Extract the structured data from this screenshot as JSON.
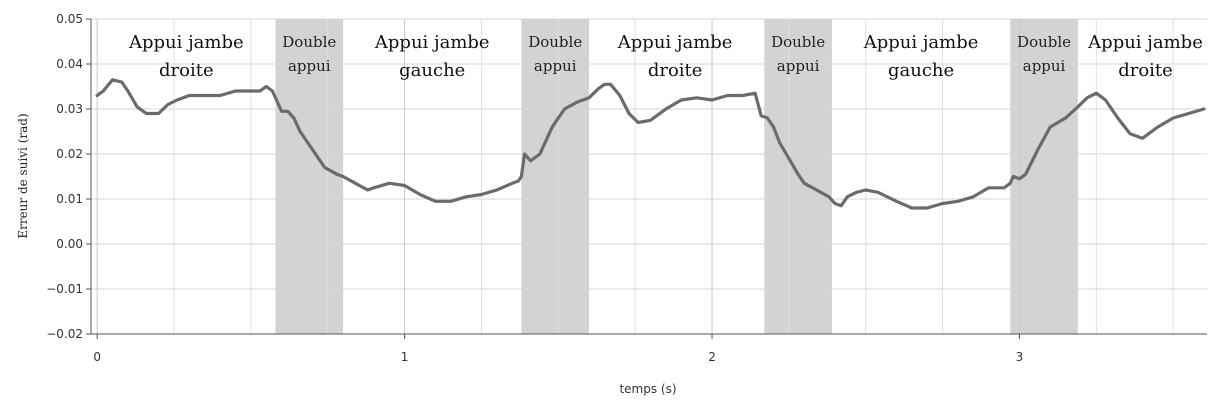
{
  "chart_data": {
    "type": "line",
    "title": "",
    "xlabel": "temps (s)",
    "ylabel": "Erreur de suivi (rad)",
    "xlim": [
      -0.02,
      3.61
    ],
    "ylim": [
      -0.02,
      0.05
    ],
    "x_ticks": [
      0,
      1,
      2,
      3
    ],
    "x_tick_labels": [
      "0",
      "1",
      "2",
      "3"
    ],
    "y_ticks": [
      -0.02,
      -0.01,
      0.0,
      0.01,
      0.02,
      0.03,
      0.04,
      0.05
    ],
    "y_tick_labels": [
      "−0.02",
      "−0.01",
      "0.00",
      "0.01",
      "0.02",
      "0.03",
      "0.04",
      "0.05"
    ],
    "x_minor_step": 0.25,
    "grid": true,
    "line_color": "#6b6b6b",
    "shade_color": "#d3d3d3",
    "shaded_intervals": [
      [
        0.58,
        0.8
      ],
      [
        1.38,
        1.6
      ],
      [
        2.17,
        2.39
      ],
      [
        2.97,
        3.19
      ]
    ],
    "phase_labels": [
      {
        "lines": [
          "Appui jambe",
          "droite"
        ],
        "x": 0.29,
        "size": "big"
      },
      {
        "lines": [
          "Double",
          "appui"
        ],
        "x": 0.69,
        "size": "small"
      },
      {
        "lines": [
          "Appui jambe",
          "gauche"
        ],
        "x": 1.09,
        "size": "big"
      },
      {
        "lines": [
          "Double",
          "appui"
        ],
        "x": 1.49,
        "size": "small"
      },
      {
        "lines": [
          "Appui jambe",
          "droite"
        ],
        "x": 1.88,
        "size": "big"
      },
      {
        "lines": [
          "Double",
          "appui"
        ],
        "x": 2.28,
        "size": "small"
      },
      {
        "lines": [
          "Appui jambe",
          "gauche"
        ],
        "x": 2.68,
        "size": "big"
      },
      {
        "lines": [
          "Double",
          "appui"
        ],
        "x": 3.08,
        "size": "small"
      },
      {
        "lines": [
          "Appui jambe",
          "droite"
        ],
        "x": 3.41,
        "size": "big"
      }
    ],
    "series": [
      {
        "x": [
          0.0,
          0.02,
          0.05,
          0.08,
          0.1,
          0.13,
          0.16,
          0.2,
          0.23,
          0.26,
          0.3,
          0.35,
          0.4,
          0.45,
          0.5,
          0.53,
          0.55,
          0.57,
          0.59,
          0.6,
          0.62,
          0.64,
          0.66,
          0.7,
          0.74,
          0.78,
          0.8,
          0.84,
          0.88,
          0.9,
          0.95,
          1.0,
          1.05,
          1.1,
          1.15,
          1.2,
          1.25,
          1.3,
          1.35,
          1.37,
          1.38,
          1.39,
          1.41,
          1.44,
          1.48,
          1.52,
          1.56,
          1.6,
          1.63,
          1.65,
          1.67,
          1.7,
          1.73,
          1.76,
          1.8,
          1.85,
          1.9,
          1.95,
          2.0,
          2.05,
          2.1,
          2.14,
          2.16,
          2.18,
          2.2,
          2.22,
          2.25,
          2.28,
          2.3,
          2.34,
          2.38,
          2.4,
          2.42,
          2.44,
          2.47,
          2.5,
          2.54,
          2.6,
          2.65,
          2.7,
          2.75,
          2.8,
          2.85,
          2.9,
          2.95,
          2.97,
          2.98,
          3.0,
          3.02,
          3.06,
          3.1,
          3.15,
          3.19,
          3.22,
          3.25,
          3.28,
          3.32,
          3.36,
          3.4,
          3.45,
          3.5,
          3.55,
          3.6
        ],
        "y": [
          0.033,
          0.034,
          0.0365,
          0.036,
          0.034,
          0.0305,
          0.029,
          0.029,
          0.031,
          0.032,
          0.033,
          0.033,
          0.033,
          0.034,
          0.034,
          0.034,
          0.035,
          0.034,
          0.031,
          0.0295,
          0.0295,
          0.028,
          0.025,
          0.021,
          0.017,
          0.0155,
          0.015,
          0.0135,
          0.012,
          0.0125,
          0.0135,
          0.013,
          0.011,
          0.0095,
          0.0095,
          0.0105,
          0.011,
          0.012,
          0.0135,
          0.014,
          0.015,
          0.02,
          0.0185,
          0.02,
          0.026,
          0.03,
          0.0315,
          0.0325,
          0.0345,
          0.0355,
          0.0355,
          0.033,
          0.029,
          0.027,
          0.0275,
          0.03,
          0.032,
          0.0325,
          0.032,
          0.033,
          0.033,
          0.0335,
          0.0285,
          0.028,
          0.026,
          0.0225,
          0.019,
          0.0155,
          0.0135,
          0.012,
          0.0105,
          0.009,
          0.0085,
          0.0105,
          0.0115,
          0.012,
          0.0115,
          0.0095,
          0.008,
          0.008,
          0.009,
          0.0095,
          0.0105,
          0.0125,
          0.0125,
          0.0135,
          0.015,
          0.0145,
          0.0155,
          0.021,
          0.026,
          0.028,
          0.0305,
          0.0325,
          0.0335,
          0.032,
          0.028,
          0.0245,
          0.0235,
          0.026,
          0.028,
          0.029,
          0.03
        ]
      }
    ]
  }
}
